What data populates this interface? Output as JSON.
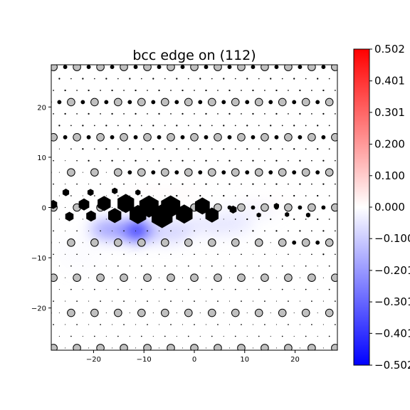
{
  "chart_data": {
    "type": "heatmap",
    "title": "bcc edge on (112)",
    "xlabel": "",
    "ylabel": "",
    "xlim": [
      -28.4,
      28.4
    ],
    "ylim": [
      -28.4,
      28.4
    ],
    "x_ticks": [
      -20,
      -10,
      0,
      10,
      20
    ],
    "y_ticks": [
      -20,
      -10,
      0,
      10,
      20
    ],
    "x_tick_labels": [
      "−20",
      "−10",
      "0",
      "10",
      "20"
    ],
    "y_tick_labels": [
      "−20",
      "−10",
      "0",
      "10",
      "20"
    ],
    "grid": false,
    "colormap": "bwr",
    "colorbar": {
      "min": -0.502,
      "max": 0.502,
      "ticks": [
        0.502,
        0.401,
        0.301,
        0.2,
        0.1,
        0.0,
        -0.1,
        -0.201,
        -0.301,
        -0.401,
        -0.502
      ],
      "tick_labels": [
        "0.502",
        "0.401",
        "0.301",
        "0.200",
        "0.100",
        "0.000",
        "−0.100",
        "−0.201",
        "−0.301",
        "−0.401",
        "−0.502"
      ]
    },
    "lattice": {
      "column_spacing": 2.33,
      "row_spacing": 2.33,
      "row_offset": 1.17
    },
    "colors": {
      "min": "#0000ff",
      "zero": "#ffffff",
      "max": "#ff0000",
      "atom_fill": "#c0c0c0",
      "atom_edge": "#000000",
      "core_atoms": "#000000"
    },
    "field": [
      {
        "x": -11.5,
        "y": -4.6,
        "sx": 3.3,
        "sy": 1.9,
        "value": -0.5
      },
      {
        "x": -16.5,
        "y": -4.4,
        "sx": 4.2,
        "sy": 2.0,
        "value": -0.24
      },
      {
        "x": -5.5,
        "y": -4.8,
        "sx": 5.0,
        "sy": 2.2,
        "value": -0.16
      },
      {
        "x": 4.5,
        "y": -3.4,
        "sx": 7.0,
        "sy": 2.3,
        "value": -0.12
      },
      {
        "x": 11.5,
        "y": -0.8,
        "sx": 5.0,
        "sy": 1.8,
        "value": -0.08
      },
      {
        "x": -23.0,
        "y": -9.0,
        "sx": 5.0,
        "sy": 4.0,
        "value": -0.04
      },
      {
        "x": -6.0,
        "y": 2.6,
        "sx": 8.0,
        "sy": 1.8,
        "value": 0.05
      },
      {
        "x": 14.0,
        "y": 0.7,
        "sx": 6.0,
        "sy": 1.4,
        "value": 0.04
      }
    ],
    "core_atoms": [
      {
        "x": -13.6,
        "y": 0.8,
        "size": 1.9
      },
      {
        "x": -9.0,
        "y": 0.2,
        "size": 2.2
      },
      {
        "x": -4.7,
        "y": 0.2,
        "size": 2.2
      },
      {
        "x": -17.9,
        "y": 0.8,
        "size": 1.5
      },
      {
        "x": -11.2,
        "y": -1.4,
        "size": 1.9
      },
      {
        "x": -6.4,
        "y": -1.7,
        "size": 2.4
      },
      {
        "x": -2.0,
        "y": -1.3,
        "size": 1.9
      },
      {
        "x": 1.6,
        "y": 0.3,
        "size": 1.7
      },
      {
        "x": -15.8,
        "y": -1.6,
        "size": 1.5
      },
      {
        "x": 3.5,
        "y": -1.5,
        "size": 1.5
      },
      {
        "x": -21.9,
        "y": 0.6,
        "size": 1.2
      },
      {
        "x": -20.5,
        "y": -1.7,
        "size": 1.1
      },
      {
        "x": -24.8,
        "y": -1.8,
        "size": 0.95
      },
      {
        "x": -28.0,
        "y": 0.6,
        "size": 0.9
      },
      {
        "x": -25.5,
        "y": 3.0,
        "size": 0.75
      },
      {
        "x": -20.6,
        "y": 3.0,
        "size": 0.7
      },
      {
        "x": -15.8,
        "y": 3.3,
        "size": 0.65
      },
      {
        "x": -11.2,
        "y": 3.0,
        "size": 0.6
      },
      {
        "x": 7.7,
        "y": -0.4,
        "size": 0.8
      },
      {
        "x": 12.8,
        "y": -1.5,
        "size": 0.5
      },
      {
        "x": 16.3,
        "y": 0.3,
        "size": 0.6
      },
      {
        "x": 18.4,
        "y": -1.4,
        "size": 0.5
      },
      {
        "x": 22.6,
        "y": -1.5,
        "size": 0.5
      }
    ],
    "atom_radius": {
      "max": 0.75,
      "min": 0.12
    }
  }
}
